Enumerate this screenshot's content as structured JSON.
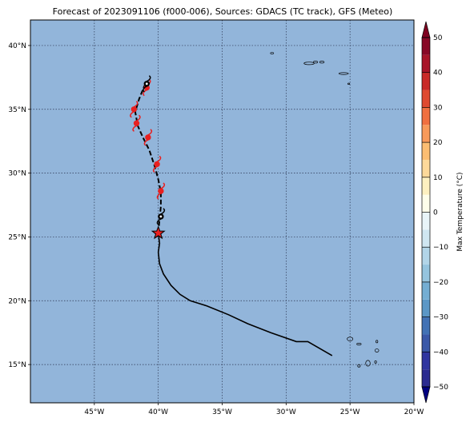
{
  "title": "Forecast of 2023091106 (f000-006), Sources: GDACS (TC track), GFS (Meteo)",
  "map": {
    "ocean_color": "#92b5da",
    "grid": true,
    "lon_range": [
      -50,
      -20
    ],
    "lat_range": [
      12,
      42
    ],
    "lat_ticks": [
      {
        "value": 40,
        "label": "40°N"
      },
      {
        "value": 35,
        "label": "35°N"
      },
      {
        "value": 30,
        "label": "30°N"
      },
      {
        "value": 25,
        "label": "25°N"
      },
      {
        "value": 20,
        "label": "20°N"
      },
      {
        "value": 15,
        "label": "15°N"
      }
    ],
    "lon_ticks": [
      {
        "value": -45,
        "label": "45°W"
      },
      {
        "value": -40,
        "label": "40°W"
      },
      {
        "value": -35,
        "label": "35°W"
      },
      {
        "value": -30,
        "label": "30°W"
      },
      {
        "value": -25,
        "label": "25°W"
      },
      {
        "value": -20,
        "label": "20°W"
      }
    ]
  },
  "track": {
    "past_color": "#000000",
    "past": [
      [
        -26.4,
        15.7
      ],
      [
        -28.3,
        16.8
      ],
      [
        -29.2,
        16.8
      ],
      [
        -31.2,
        17.5
      ],
      [
        -33.0,
        18.2
      ],
      [
        -34.5,
        18.9
      ],
      [
        -36.2,
        19.6
      ],
      [
        -37.5,
        20.0
      ],
      [
        -38.3,
        20.5
      ],
      [
        -39.0,
        21.2
      ],
      [
        -39.6,
        22.1
      ],
      [
        -39.9,
        22.9
      ],
      [
        -40.0,
        23.8
      ],
      [
        -39.9,
        24.5
      ],
      [
        -40.0,
        25.3
      ]
    ],
    "current": {
      "lon": -40.0,
      "lat": 25.3,
      "color": "#e82020"
    },
    "forecast": [
      [
        -40.0,
        25.3
      ],
      [
        -39.9,
        26.4
      ],
      [
        -39.8,
        27.4
      ],
      [
        -39.8,
        28.5
      ],
      [
        -40.0,
        29.5
      ],
      [
        -40.3,
        30.6
      ],
      [
        -40.7,
        31.8
      ],
      [
        -41.2,
        32.8
      ],
      [
        -41.6,
        33.7
      ],
      [
        -41.8,
        34.8
      ],
      [
        -41.5,
        35.8
      ],
      [
        -41.1,
        36.8
      ],
      [
        -40.9,
        37.1
      ]
    ],
    "storm_symbols": [
      {
        "lon": -39.8,
        "lat": 26.6,
        "color": "#000000"
      },
      {
        "lon": -39.8,
        "lat": 28.6,
        "color": "#e82020"
      },
      {
        "lon": -40.1,
        "lat": 30.7,
        "color": "#e82020"
      },
      {
        "lon": -40.8,
        "lat": 32.8,
        "color": "#e82020"
      },
      {
        "lon": -41.7,
        "lat": 33.9,
        "color": "#e82020"
      },
      {
        "lon": -41.9,
        "lat": 35.0,
        "color": "#e82020"
      },
      {
        "lon": -40.9,
        "lat": 36.7,
        "color": "#e82020"
      },
      {
        "lon": -40.9,
        "lat": 37.0,
        "color": "#000000"
      }
    ]
  },
  "islands": [
    {
      "lon": -31.1,
      "lat": 39.4,
      "w": 0.25,
      "h": 0.12
    },
    {
      "lon": -28.2,
      "lat": 38.6,
      "w": 0.8,
      "h": 0.2
    },
    {
      "lon": -27.7,
      "lat": 38.7,
      "w": 0.35,
      "h": 0.15
    },
    {
      "lon": -27.2,
      "lat": 38.7,
      "w": 0.35,
      "h": 0.15
    },
    {
      "lon": -25.5,
      "lat": 37.8,
      "w": 0.75,
      "h": 0.15
    },
    {
      "lon": -25.1,
      "lat": 37.0,
      "w": 0.15,
      "h": 0.1
    },
    {
      "lon": -25.0,
      "lat": 17.0,
      "w": 0.45,
      "h": 0.3
    },
    {
      "lon": -24.3,
      "lat": 16.6,
      "w": 0.35,
      "h": 0.15
    },
    {
      "lon": -22.9,
      "lat": 16.8,
      "w": 0.15,
      "h": 0.2
    },
    {
      "lon": -22.9,
      "lat": 16.1,
      "w": 0.3,
      "h": 0.25
    },
    {
      "lon": -24.3,
      "lat": 14.9,
      "w": 0.2,
      "h": 0.2
    },
    {
      "lon": -23.6,
      "lat": 15.1,
      "w": 0.35,
      "h": 0.45
    },
    {
      "lon": -23.0,
      "lat": 15.2,
      "w": 0.15,
      "h": 0.2
    }
  ],
  "colorbar": {
    "label": "Max Temperature (°C)",
    "min": -50,
    "max": 50,
    "ticks": [
      {
        "value": 50,
        "label": "50"
      },
      {
        "value": 40,
        "label": "40"
      },
      {
        "value": 30,
        "label": "30"
      },
      {
        "value": 20,
        "label": "20"
      },
      {
        "value": 10,
        "label": "10"
      },
      {
        "value": 0,
        "label": "0"
      },
      {
        "value": -10,
        "label": "−10"
      },
      {
        "value": -20,
        "label": "−20"
      },
      {
        "value": -30,
        "label": "−30"
      },
      {
        "value": -40,
        "label": "−40"
      },
      {
        "value": -50,
        "label": "−50"
      }
    ],
    "bins": [
      {
        "from": -50,
        "to": -45,
        "color": "#2a2a90"
      },
      {
        "from": -45,
        "to": -40,
        "color": "#3035a0"
      },
      {
        "from": -40,
        "to": -35,
        "color": "#3a58a8"
      },
      {
        "from": -35,
        "to": -30,
        "color": "#4272b5"
      },
      {
        "from": -30,
        "to": -25,
        "color": "#5b97c6"
      },
      {
        "from": -25,
        "to": -20,
        "color": "#74aed3"
      },
      {
        "from": -20,
        "to": -15,
        "color": "#95c4de"
      },
      {
        "from": -15,
        "to": -10,
        "color": "#b2d5e8"
      },
      {
        "from": -10,
        "to": -5,
        "color": "#cfe6f1"
      },
      {
        "from": -5,
        "to": 0,
        "color": "#e8f4f8"
      },
      {
        "from": 0,
        "to": 5,
        "color": "#fefeea"
      },
      {
        "from": 5,
        "to": 10,
        "color": "#fdf0c0"
      },
      {
        "from": 10,
        "to": 15,
        "color": "#fdd99a"
      },
      {
        "from": 15,
        "to": 20,
        "color": "#fbbd72"
      },
      {
        "from": 20,
        "to": 25,
        "color": "#f89a5a"
      },
      {
        "from": 25,
        "to": 30,
        "color": "#f07040"
      },
      {
        "from": 30,
        "to": 35,
        "color": "#df4a30"
      },
      {
        "from": 35,
        "to": 40,
        "color": "#c92a28"
      },
      {
        "from": 40,
        "to": 45,
        "color": "#a81428"
      },
      {
        "from": 45,
        "to": 50,
        "color": "#880826"
      }
    ],
    "under_color": "#000080",
    "over_color": "#7f0020"
  }
}
